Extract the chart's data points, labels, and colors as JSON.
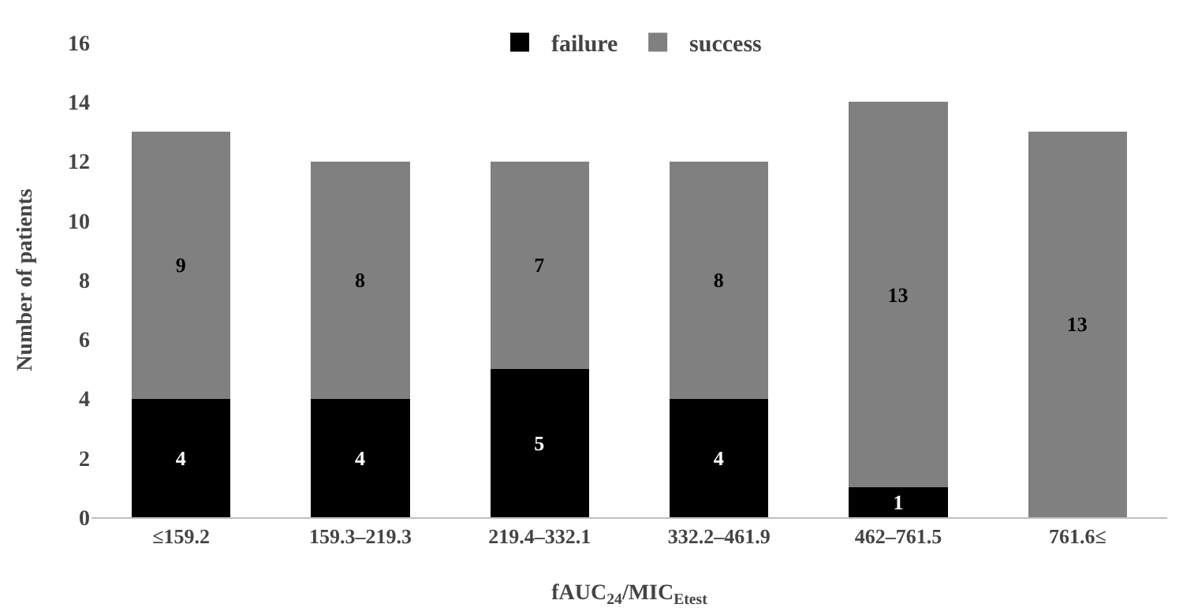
{
  "chart_data": {
    "type": "bar",
    "stacked": true,
    "xlabel": "fAUC$_{24}$/MIC$_{Etest}$",
    "ylabel": "Number of patients",
    "categories": [
      "≤159.2",
      "159.3–219.3",
      "219.4–332.1",
      "332.2–461.9",
      "462–761.5",
      "761.6≤"
    ],
    "series": [
      {
        "name": "failure",
        "color": "#000000",
        "values": [
          4,
          4,
          5,
          4,
          1,
          0
        ],
        "value_labels": [
          "4",
          "4",
          "5",
          "4",
          "1",
          null
        ]
      },
      {
        "name": "success",
        "color": "#808080",
        "values": [
          9,
          8,
          7,
          8,
          13,
          13
        ],
        "value_labels": [
          "9",
          "8",
          "7",
          "8",
          "13",
          "13"
        ]
      }
    ],
    "ylim": [
      0,
      16
    ],
    "yticks": [
      0,
      2,
      4,
      6,
      8,
      10,
      12,
      14,
      16
    ],
    "grid": false,
    "legend": "top"
  }
}
